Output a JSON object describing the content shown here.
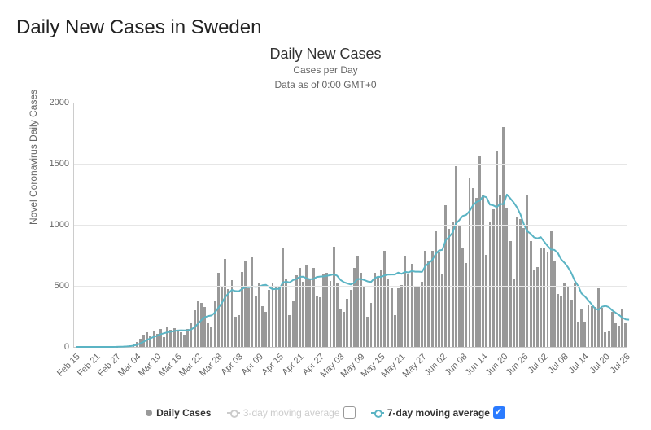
{
  "page": {
    "title": "Daily New Cases in Sweden"
  },
  "chart": {
    "title": "Daily New Cases",
    "subtitle1": "Cases per Day",
    "subtitle2": "Data as of 0:00 GMT+0",
    "y_axis_title": "Novel Coronavirus Daily Cases",
    "type": "bar+line",
    "background_color": "#ffffff",
    "grid_color": "#e6e6e6",
    "axis_color": "#cccccc",
    "bar_color": "#999999",
    "line7_color": "#5bb4c4",
    "line3_color": "#cccccc",
    "title_fontsize": 18,
    "subtitle_fontsize": 12,
    "label_fontsize": 11,
    "ylim": [
      0,
      2000
    ],
    "yticks": [
      0,
      500,
      1000,
      1500,
      2000
    ],
    "x_tick_labels": [
      "Feb 15",
      "Feb 21",
      "Feb 27",
      "Mar 04",
      "Mar 10",
      "Mar 16",
      "Mar 22",
      "Mar 28",
      "Apr 03",
      "Apr 09",
      "Apr 15",
      "Apr 21",
      "Apr 27",
      "May 03",
      "May 09",
      "May 15",
      "May 21",
      "May 27",
      "Jun 02",
      "Jun 08",
      "Jun 14",
      "Jun 20",
      "Jun 26",
      "Jul 02",
      "Jul 08",
      "Jul 14",
      "Jul 20",
      "Jul 26"
    ],
    "x_tick_every": 6,
    "daily_values": [
      0,
      0,
      0,
      0,
      0,
      0,
      0,
      0,
      0,
      0,
      0,
      0,
      2,
      4,
      6,
      8,
      12,
      25,
      40,
      70,
      100,
      120,
      90,
      135,
      110,
      150,
      80,
      160,
      140,
      155,
      130,
      120,
      100,
      150,
      200,
      300,
      380,
      360,
      325,
      200,
      160,
      380,
      610,
      490,
      720,
      475,
      550,
      250,
      260,
      615,
      700,
      480,
      735,
      420,
      530,
      335,
      290,
      465,
      530,
      495,
      490,
      810,
      560,
      260,
      375,
      590,
      650,
      535,
      670,
      560,
      645,
      415,
      410,
      600,
      610,
      540,
      820,
      530,
      310,
      290,
      395,
      470,
      650,
      750,
      610,
      490,
      245,
      360,
      605,
      575,
      625,
      785,
      555,
      480,
      260,
      480,
      505,
      745,
      600,
      680,
      495,
      490,
      535,
      790,
      700,
      790,
      950,
      780,
      600,
      1160,
      965,
      1020,
      1480,
      990,
      810,
      690,
      1380,
      1300,
      1220,
      1560,
      1250,
      755,
      1020,
      1130,
      1610,
      1240,
      1800,
      1140,
      870,
      560,
      1060,
      1050,
      975,
      1250,
      865,
      625,
      655,
      815,
      815,
      780,
      945,
      700,
      435,
      420,
      530,
      495,
      390,
      520,
      210,
      310,
      210,
      345,
      335,
      330,
      480,
      320,
      120,
      135,
      285,
      200,
      175,
      310,
      200
    ],
    "avg7_values": [
      0,
      0,
      0,
      0,
      0,
      0,
      0,
      0,
      0,
      0,
      0,
      0,
      1,
      2,
      3,
      4,
      6,
      10,
      17,
      28,
      42,
      58,
      70,
      82,
      91,
      104,
      112,
      119,
      125,
      130,
      134,
      136,
      135,
      136,
      143,
      161,
      189,
      218,
      243,
      253,
      257,
      281,
      320,
      358,
      406,
      438,
      466,
      457,
      455,
      474,
      490,
      488,
      495,
      492,
      494,
      505,
      509,
      488,
      472,
      475,
      475,
      527,
      534,
      528,
      547,
      556,
      574,
      575,
      562,
      554,
      556,
      573,
      576,
      577,
      583,
      587,
      595,
      583,
      548,
      529,
      520,
      511,
      524,
      556,
      556,
      547,
      536,
      532,
      562,
      575,
      573,
      586,
      592,
      593,
      593,
      608,
      598,
      614,
      610,
      621,
      616,
      616,
      614,
      661,
      686,
      711,
      760,
      789,
      795,
      875,
      901,
      936,
      1011,
      1039,
      1072,
      1080,
      1112,
      1159,
      1186,
      1196,
      1234,
      1225,
      1165,
      1159,
      1145,
      1170,
      1169,
      1247,
      1216,
      1183,
      1141,
      1085,
      1004,
      947,
      927,
      897,
      889,
      899,
      861,
      826,
      797,
      794,
      769,
      716,
      688,
      652,
      604,
      543,
      499,
      437,
      413,
      381,
      347,
      313,
      304,
      329,
      336,
      326,
      300,
      281,
      262,
      240,
      225,
      223
    ]
  },
  "legend": {
    "daily_label": "Daily Cases",
    "avg3_label": "3-day moving average",
    "avg7_label": "7-day moving average",
    "avg3_enabled": false,
    "avg7_enabled": true
  }
}
